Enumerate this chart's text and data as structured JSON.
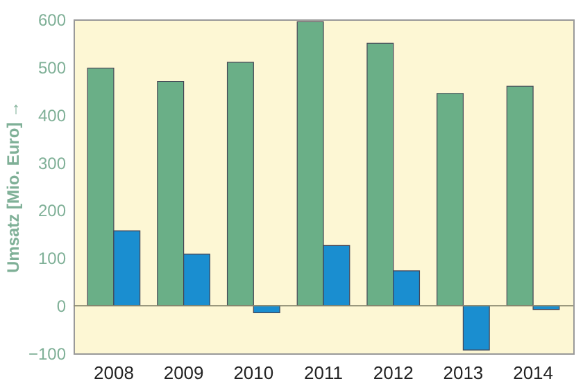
{
  "chart_data": {
    "type": "bar",
    "ylabel": "Umsatz [Mio. Euro] →",
    "categories": [
      "2008",
      "2009",
      "2010",
      "2011",
      "2012",
      "2013",
      "2014"
    ],
    "series": [
      {
        "color": "#6aaf87",
        "values": [
          498,
          470,
          510,
          595,
          550,
          445,
          460
        ]
      },
      {
        "color": "#1a8ed0",
        "values": [
          157,
          108,
          -15,
          126,
          73,
          -93,
          -8
        ]
      }
    ],
    "ylim": [
      -100,
      600
    ],
    "yticks": [
      -100,
      0,
      100,
      200,
      300,
      400,
      500,
      600
    ],
    "grid": false,
    "legend": false,
    "ref_lines": [
      {
        "axis": "y",
        "value": 0,
        "color": "#8a8a70"
      }
    ]
  }
}
